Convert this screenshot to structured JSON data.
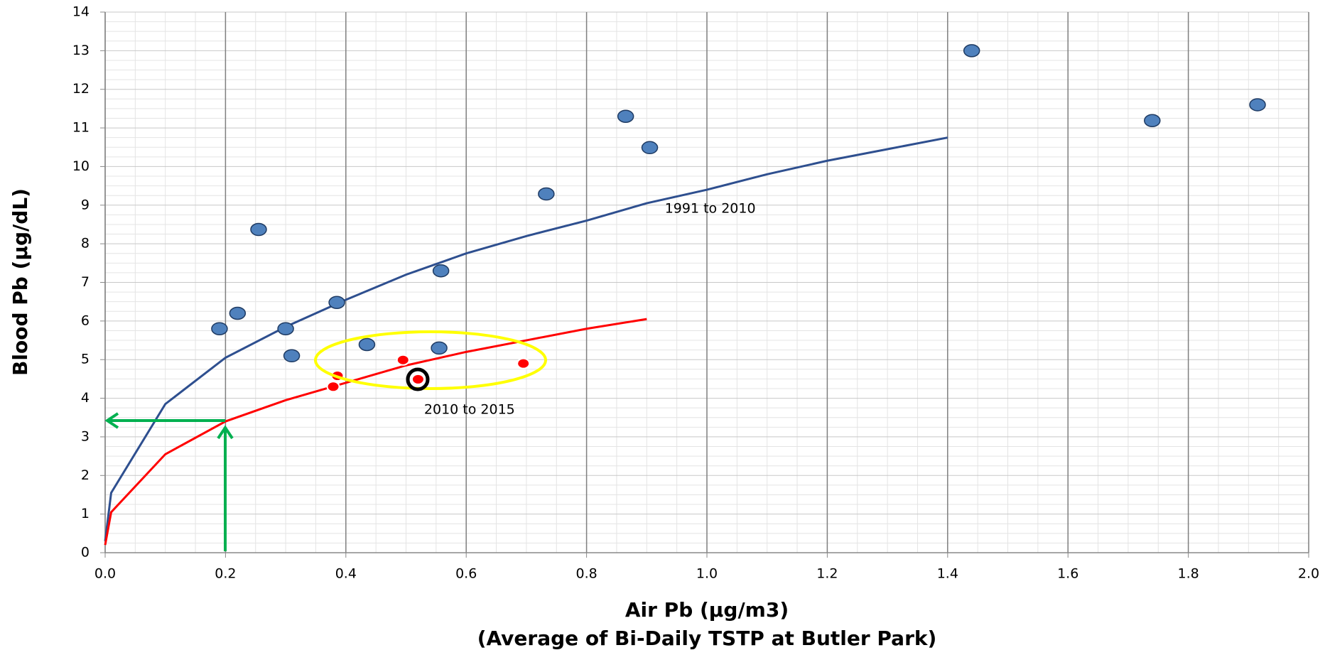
{
  "chart_data": {
    "type": "scatter",
    "ylabel": "Blood Pb (µg/dL)",
    "xlabel": [
      "Air Pb (µg/m3)",
      "(Average of Bi-Daily TSTP at Butler Park)"
    ],
    "annotations": [
      {
        "text": "1991 to 2010",
        "x": 0.93,
        "y": 8.9
      },
      {
        "text": "2010 to 2015",
        "x": 0.53,
        "y": 3.7
      }
    ],
    "xlim": [
      0,
      2
    ],
    "ylim": [
      0,
      14
    ],
    "xticks": [
      {
        "value": 0,
        "label": "0.0"
      },
      {
        "value": 0.2,
        "label": "0.2"
      },
      {
        "value": 0.4,
        "label": "0.4"
      },
      {
        "value": 0.6,
        "label": "0.6"
      },
      {
        "value": 0.8,
        "label": "0.8"
      },
      {
        "value": 1.0,
        "label": "1.0"
      },
      {
        "value": 1.2,
        "label": "1.2"
      },
      {
        "value": 1.4,
        "label": "1.4"
      },
      {
        "value": 1.6,
        "label": "1.6"
      },
      {
        "value": 1.8,
        "label": "1.8"
      },
      {
        "value": 2.0,
        "label": "2.0"
      }
    ],
    "yticks": [
      0,
      1,
      2,
      3,
      4,
      5,
      6,
      7,
      8,
      9,
      10,
      11,
      12,
      13,
      14
    ],
    "grid": true,
    "series": [
      {
        "type": "scatter",
        "color": "#4f81bd",
        "x": [
          0.19,
          0.22,
          0.255,
          0.3,
          0.31,
          0.385,
          0.435,
          0.555,
          0.558,
          0.733,
          0.865,
          0.905,
          1.44,
          1.74,
          1.915
        ],
        "values": [
          5.8,
          6.2,
          8.37,
          5.8,
          5.1,
          6.48,
          5.39,
          5.3,
          7.3,
          9.29,
          11.3,
          10.49,
          13.0,
          11.19,
          11.6
        ]
      },
      {
        "type": "scatter",
        "color": "#ff0000",
        "x": [
          0.379,
          0.386,
          0.495,
          0.52,
          0.695
        ],
        "values": [
          4.3,
          4.58,
          4.99,
          4.49,
          4.9
        ]
      },
      {
        "type": "line",
        "color": "#2e4f8f",
        "x": [
          0,
          0.01,
          0.1,
          0.2,
          0.3,
          0.4,
          0.5,
          0.6,
          0.7,
          0.8,
          0.9,
          1.0,
          1.1,
          1.2,
          1.3,
          1.4
        ],
        "values": [
          0.3,
          1.55,
          3.85,
          5.05,
          5.85,
          6.55,
          7.2,
          7.75,
          8.2,
          8.6,
          9.05,
          9.4,
          9.8,
          10.15,
          10.45,
          10.75
        ]
      },
      {
        "type": "line",
        "color": "#ff0000",
        "x": [
          0,
          0.01,
          0.1,
          0.2,
          0.3,
          0.4,
          0.5,
          0.6,
          0.7,
          0.8,
          0.9
        ],
        "values": [
          0.2,
          1.05,
          2.55,
          3.4,
          3.95,
          4.4,
          4.85,
          5.2,
          5.5,
          5.8,
          6.05
        ]
      }
    ]
  }
}
